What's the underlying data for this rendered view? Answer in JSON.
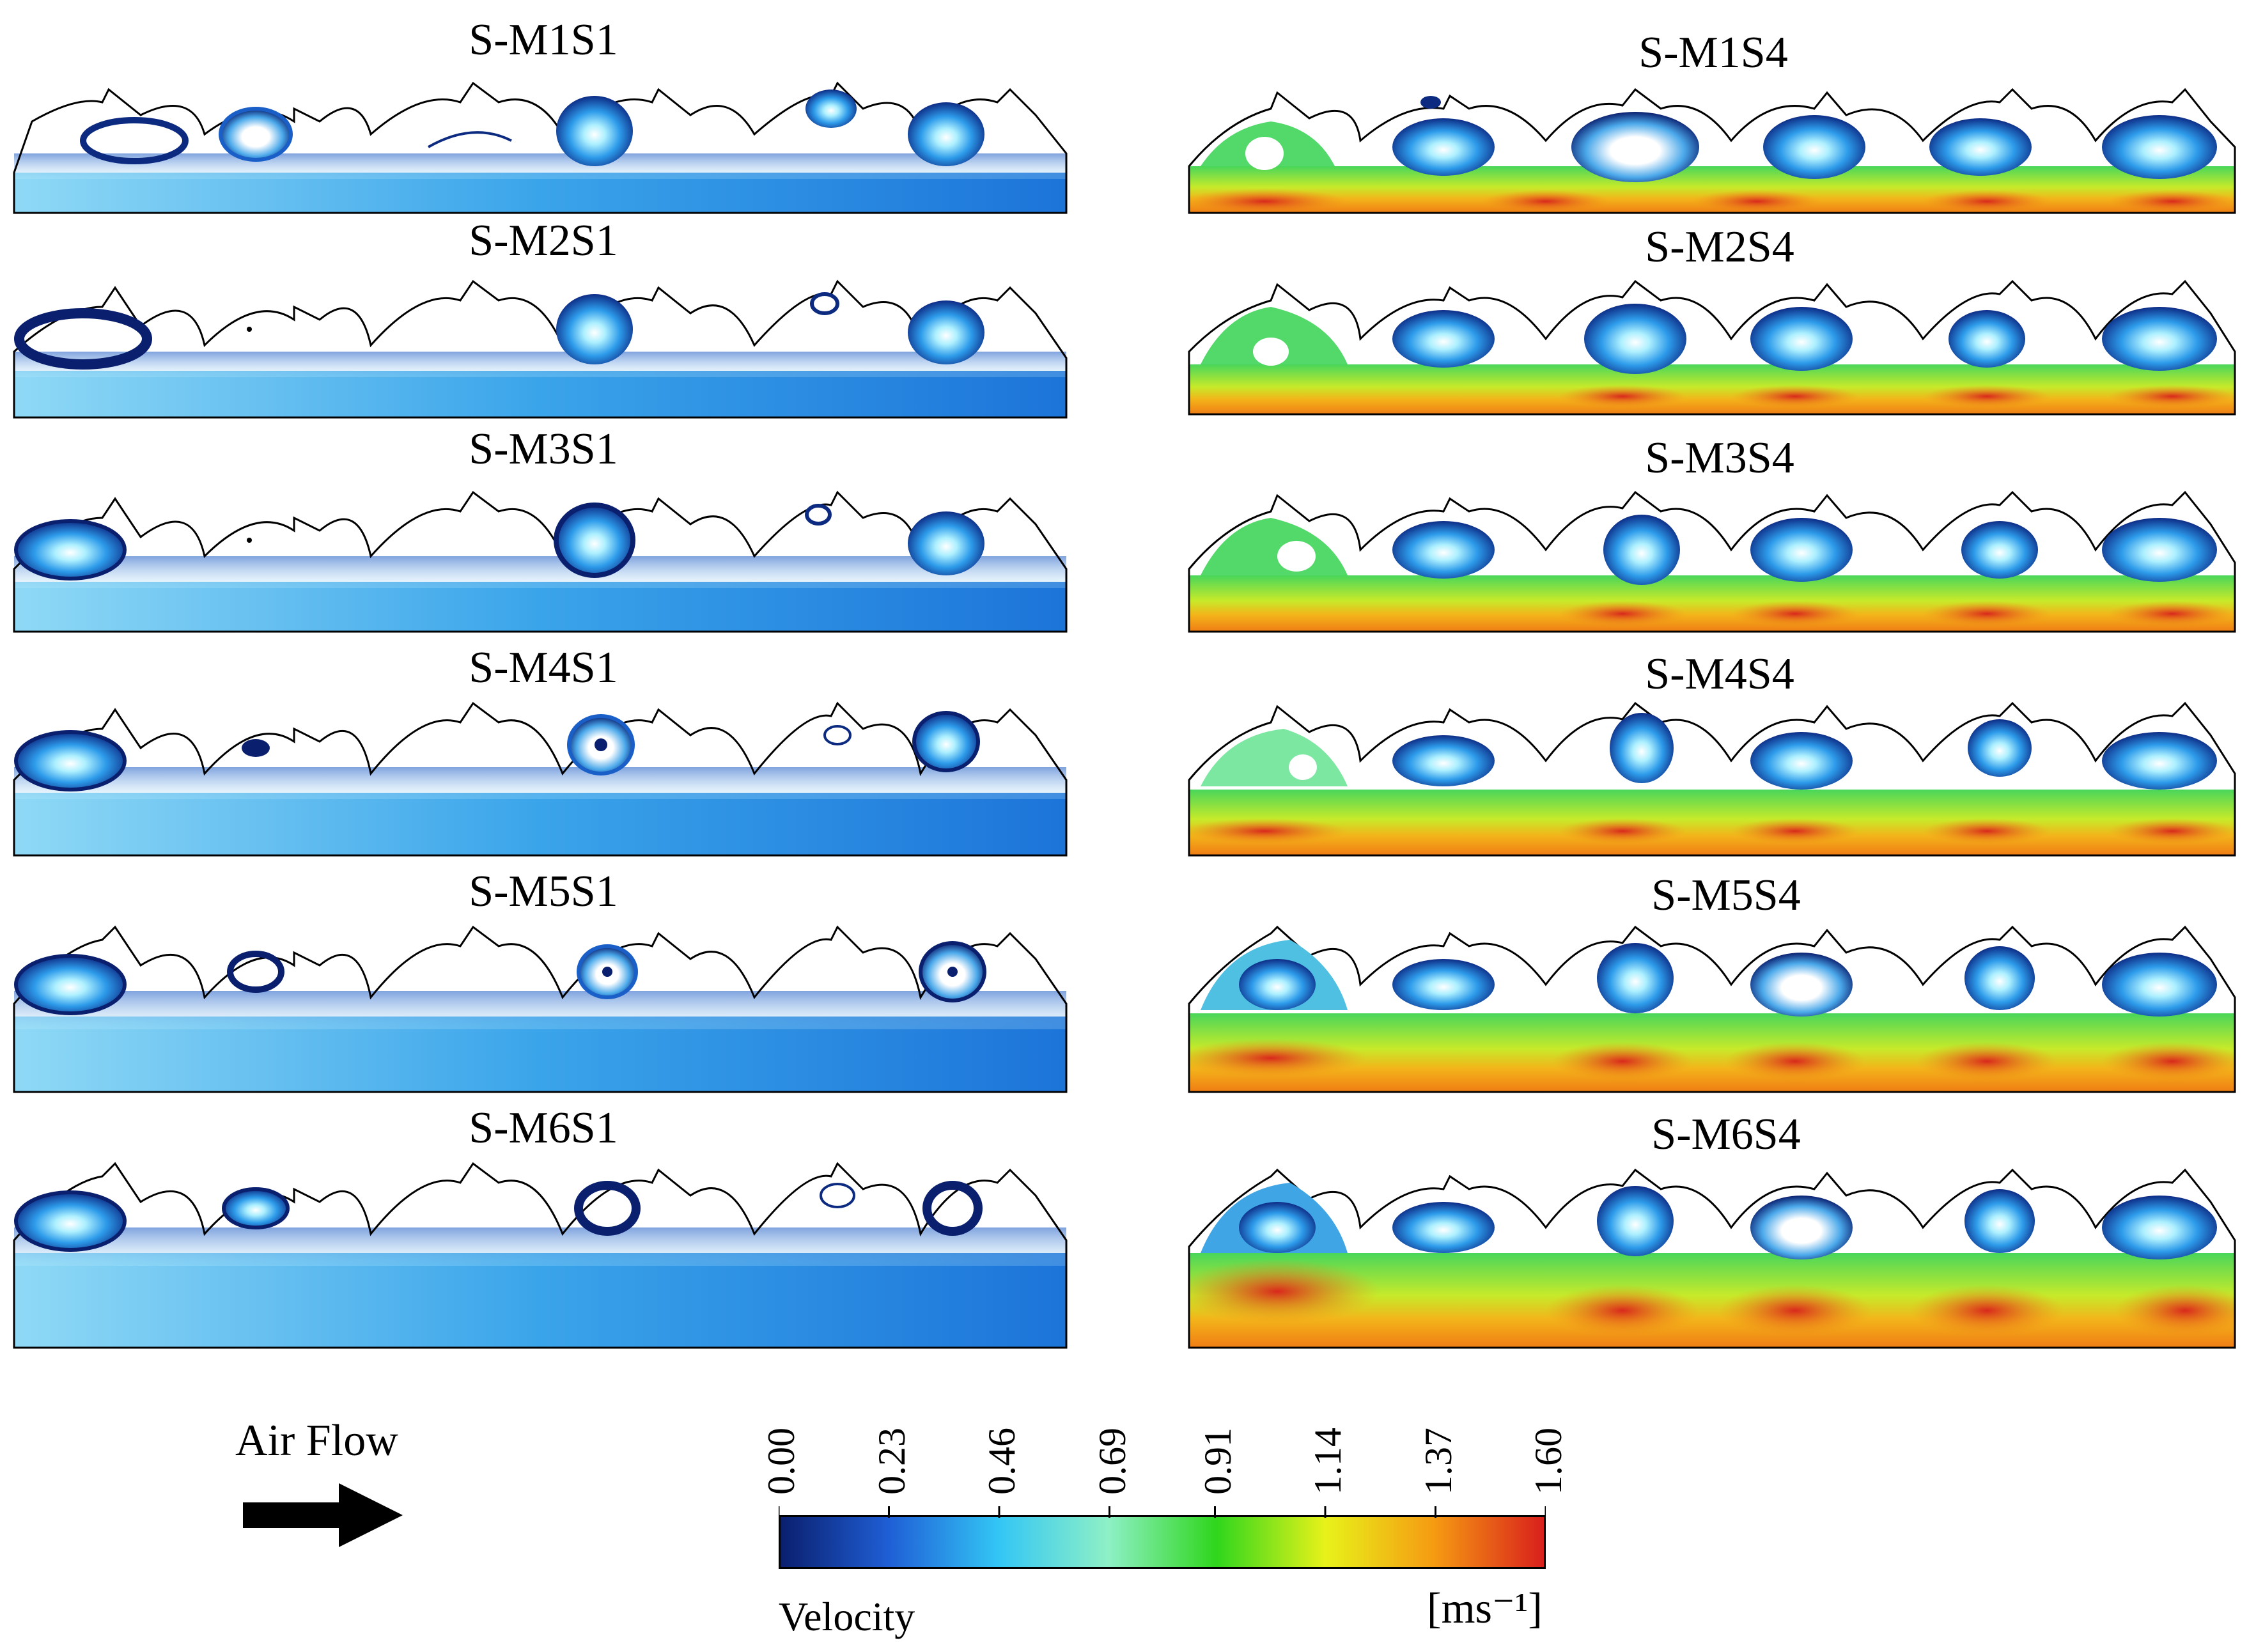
{
  "figure": {
    "left_column": {
      "panels": [
        {
          "title": "S-M1S1"
        },
        {
          "title": "S-M2S1"
        },
        {
          "title": "S-M3S1"
        },
        {
          "title": "S-M4S1"
        },
        {
          "title": "S-M5S1"
        },
        {
          "title": "S-M6S1"
        }
      ]
    },
    "right_column": {
      "panels": [
        {
          "title": "S-M1S4"
        },
        {
          "title": "S-M2S4"
        },
        {
          "title": "S-M3S4"
        },
        {
          "title": "S-M4S4"
        },
        {
          "title": "S-M5S4"
        },
        {
          "title": "S-M6S4"
        }
      ]
    }
  },
  "flow_indicator": {
    "label": "Air Flow",
    "icon": "right-arrow-icon"
  },
  "colorbar": {
    "title": "Velocity",
    "unit": "[ms⁻¹]",
    "ticks": [
      "0.00",
      "0.23",
      "0.46",
      "0.69",
      "0.91",
      "1.14",
      "1.37",
      "1.60"
    ],
    "min": 0.0,
    "max": 1.6,
    "colors": [
      "#0a1f6e",
      "#1f5fd6",
      "#33c6f5",
      "#8ef0c6",
      "#2fd61c",
      "#e8f21a",
      "#f59a12",
      "#d9201c"
    ]
  }
}
